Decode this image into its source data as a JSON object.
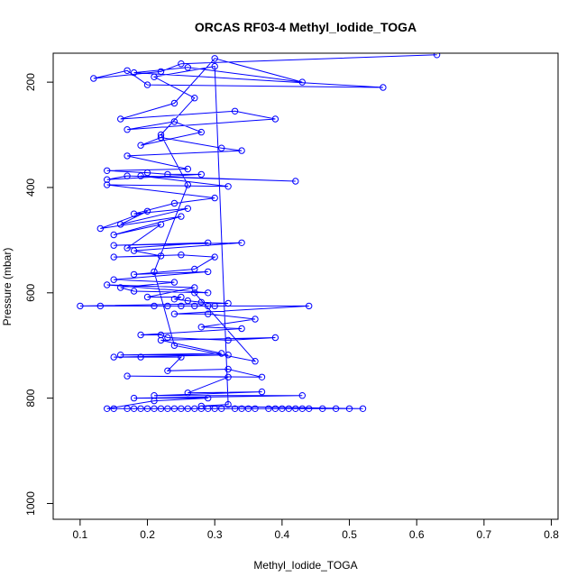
{
  "chart_data": {
    "type": "scatter",
    "title": "ORCAS RF03-4 Methyl_Iodide_TOGA",
    "xlabel": "Methyl_Iodide_TOGA",
    "ylabel": "Pressure (mbar)",
    "xlim": [
      0.06,
      0.81
    ],
    "ylim": [
      1030,
      145
    ],
    "y_reversed": true,
    "x_ticks": [
      0.1,
      0.2,
      0.3,
      0.4,
      0.5,
      0.6,
      0.7,
      0.8
    ],
    "x_tick_labels": [
      "0.1",
      "0.2",
      "0.3",
      "0.4",
      "0.5",
      "0.6",
      "0.7",
      "0.8"
    ],
    "y_ticks": [
      200,
      400,
      600,
      800,
      1000
    ],
    "y_tick_labels": [
      "200",
      "400",
      "600",
      "800",
      "1000"
    ],
    "grid": false,
    "legend": "none",
    "connected": true,
    "series_color": "#0000ff",
    "points": [
      [
        0.63,
        148
      ],
      [
        0.25,
        165
      ],
      [
        0.22,
        180
      ],
      [
        0.12,
        193
      ],
      [
        0.17,
        178
      ],
      [
        0.2,
        205
      ],
      [
        0.55,
        210
      ],
      [
        0.18,
        182
      ],
      [
        0.26,
        172
      ],
      [
        0.43,
        200
      ],
      [
        0.3,
        155
      ],
      [
        0.24,
        240
      ],
      [
        0.16,
        270
      ],
      [
        0.33,
        255
      ],
      [
        0.39,
        270
      ],
      [
        0.17,
        290
      ],
      [
        0.24,
        275
      ],
      [
        0.28,
        295
      ],
      [
        0.19,
        320
      ],
      [
        0.22,
        305
      ],
      [
        0.31,
        325
      ],
      [
        0.34,
        330
      ],
      [
        0.17,
        340
      ],
      [
        0.26,
        365
      ],
      [
        0.14,
        368
      ],
      [
        0.2,
        372
      ],
      [
        0.23,
        375
      ],
      [
        0.28,
        375
      ],
      [
        0.14,
        385
      ],
      [
        0.17,
        378
      ],
      [
        0.42,
        388
      ],
      [
        0.19,
        378
      ],
      [
        0.32,
        398
      ],
      [
        0.14,
        395
      ],
      [
        0.3,
        420
      ],
      [
        0.24,
        430
      ],
      [
        0.18,
        450
      ],
      [
        0.26,
        440
      ],
      [
        0.16,
        470
      ],
      [
        0.2,
        445
      ],
      [
        0.13,
        478
      ],
      [
        0.25,
        455
      ],
      [
        0.15,
        490
      ],
      [
        0.22,
        470
      ],
      [
        0.17,
        515
      ],
      [
        0.29,
        505
      ],
      [
        0.15,
        510
      ],
      [
        0.34,
        505
      ],
      [
        0.18,
        520
      ],
      [
        0.22,
        530
      ],
      [
        0.15,
        532
      ],
      [
        0.25,
        528
      ],
      [
        0.3,
        532
      ],
      [
        0.27,
        555
      ],
      [
        0.18,
        565
      ],
      [
        0.29,
        560
      ],
      [
        0.15,
        575
      ],
      [
        0.24,
        580
      ],
      [
        0.16,
        590
      ],
      [
        0.18,
        597
      ],
      [
        0.29,
        600
      ],
      [
        0.14,
        585
      ],
      [
        0.27,
        590
      ],
      [
        0.2,
        608
      ],
      [
        0.25,
        608
      ],
      [
        0.24,
        612
      ],
      [
        0.26,
        615
      ],
      [
        0.28,
        618
      ],
      [
        0.32,
        620
      ],
      [
        0.1,
        625
      ],
      [
        0.13,
        625
      ],
      [
        0.21,
        625
      ],
      [
        0.23,
        625
      ],
      [
        0.25,
        625
      ],
      [
        0.27,
        625
      ],
      [
        0.29,
        625
      ],
      [
        0.3,
        625
      ],
      [
        0.44,
        625
      ],
      [
        0.24,
        640
      ],
      [
        0.29,
        640
      ],
      [
        0.36,
        650
      ],
      [
        0.28,
        665
      ],
      [
        0.34,
        668
      ],
      [
        0.19,
        680
      ],
      [
        0.22,
        680
      ],
      [
        0.23,
        685
      ],
      [
        0.32,
        690
      ],
      [
        0.39,
        685
      ],
      [
        0.22,
        690
      ],
      [
        0.31,
        715
      ],
      [
        0.16,
        718
      ],
      [
        0.32,
        718
      ],
      [
        0.15,
        722
      ],
      [
        0.19,
        722
      ],
      [
        0.25,
        722
      ],
      [
        0.23,
        748
      ],
      [
        0.32,
        745
      ],
      [
        0.37,
        760
      ],
      [
        0.17,
        758
      ],
      [
        0.32,
        760
      ],
      [
        0.26,
        790
      ],
      [
        0.37,
        788
      ],
      [
        0.21,
        795
      ],
      [
        0.43,
        795
      ],
      [
        0.18,
        800
      ],
      [
        0.29,
        800
      ],
      [
        0.21,
        805
      ],
      [
        0.14,
        820
      ],
      [
        0.15,
        820
      ],
      [
        0.17,
        820
      ],
      [
        0.18,
        820
      ],
      [
        0.19,
        820
      ],
      [
        0.2,
        820
      ],
      [
        0.21,
        820
      ],
      [
        0.22,
        820
      ],
      [
        0.23,
        820
      ],
      [
        0.24,
        820
      ],
      [
        0.25,
        820
      ],
      [
        0.26,
        820
      ],
      [
        0.27,
        820
      ],
      [
        0.28,
        820
      ],
      [
        0.29,
        820
      ],
      [
        0.3,
        820
      ],
      [
        0.31,
        820
      ],
      [
        0.33,
        820
      ],
      [
        0.34,
        820
      ],
      [
        0.35,
        820
      ],
      [
        0.36,
        820
      ],
      [
        0.38,
        820
      ],
      [
        0.39,
        820
      ],
      [
        0.4,
        820
      ],
      [
        0.41,
        820
      ],
      [
        0.42,
        820
      ],
      [
        0.43,
        820
      ],
      [
        0.44,
        820
      ],
      [
        0.46,
        820
      ],
      [
        0.48,
        820
      ],
      [
        0.5,
        820
      ],
      [
        0.52,
        820
      ],
      [
        0.28,
        815
      ],
      [
        0.32,
        812
      ],
      [
        0.3,
        170
      ],
      [
        0.21,
        190
      ],
      [
        0.27,
        230
      ],
      [
        0.22,
        300
      ],
      [
        0.26,
        395
      ],
      [
        0.21,
        560
      ],
      [
        0.24,
        700
      ],
      [
        0.36,
        730
      ],
      [
        0.27,
        600
      ]
    ]
  }
}
